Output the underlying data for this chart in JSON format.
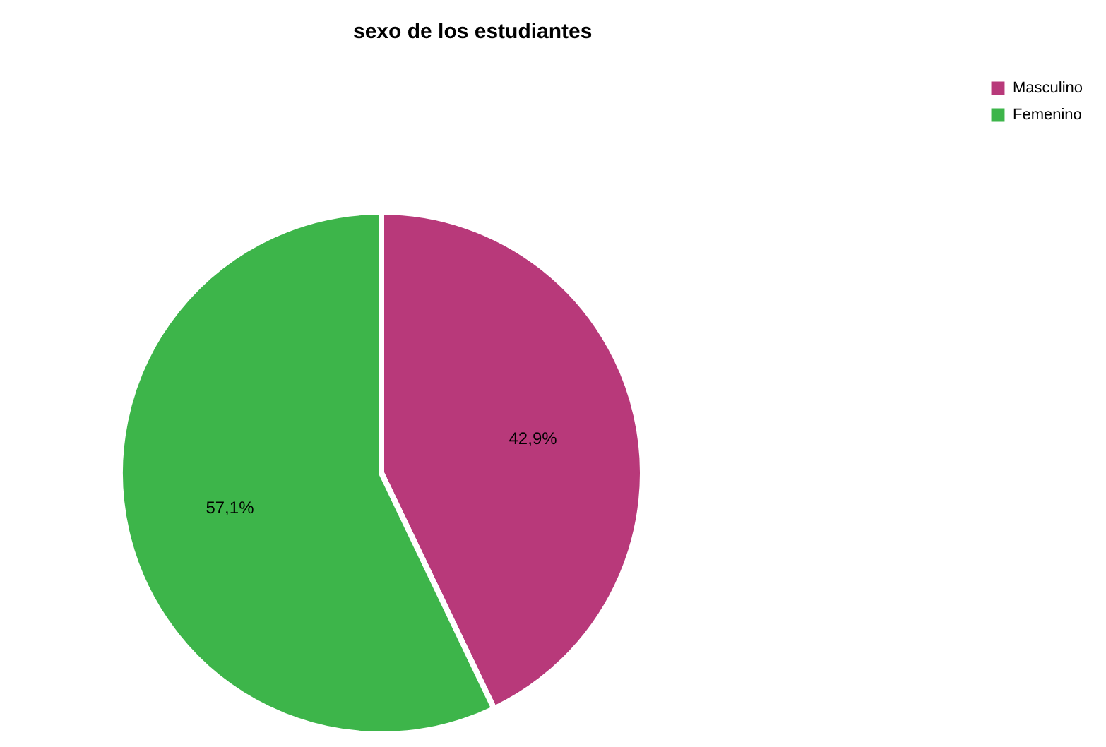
{
  "chart_data": {
    "type": "pie",
    "title": "sexo de los estudiantes",
    "categories": [
      "Masculino",
      "Femenino"
    ],
    "values": [
      42.9,
      57.1
    ],
    "colors": [
      "#b8397a",
      "#3db54a"
    ],
    "value_labels": [
      "42,9%",
      "57,1%"
    ],
    "legend": "top right"
  }
}
